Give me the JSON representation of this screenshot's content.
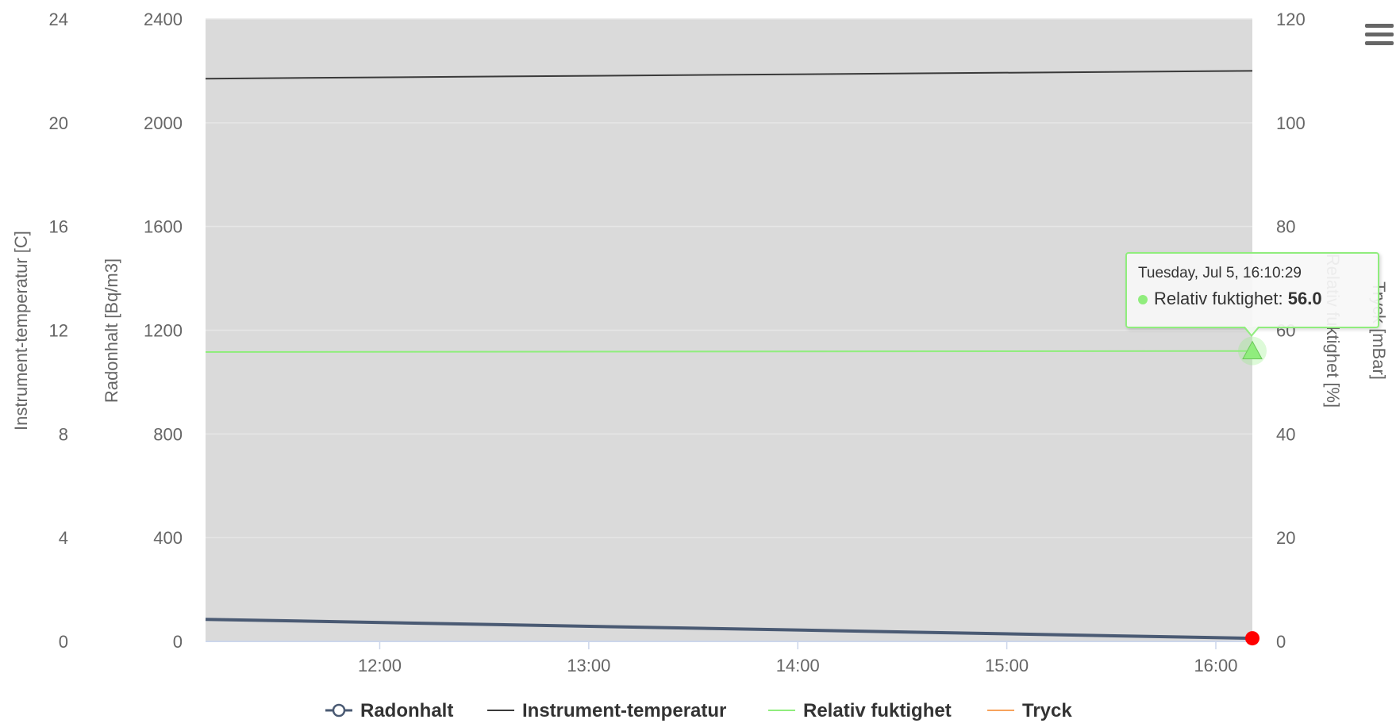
{
  "chart_data": {
    "type": "line",
    "x_ticks": [
      "12:00",
      "13:00",
      "14:00",
      "15:00",
      "16:00"
    ],
    "axes": {
      "temp": {
        "title": "Instrument-temperatur [C]",
        "ylim": [
          0,
          24
        ],
        "ticks": [
          "0",
          "4",
          "8",
          "12",
          "16",
          "20",
          "24"
        ]
      },
      "radon": {
        "title": "Radonhalt [Bq/m3]",
        "ylim": [
          0,
          2400
        ],
        "ticks": [
          "0",
          "400",
          "800",
          "1200",
          "1600",
          "2000",
          "2400"
        ]
      },
      "humidity": {
        "title": "Relativ fuktighet [%]",
        "ylim": [
          0,
          120
        ],
        "ticks": [
          "0",
          "20",
          "40",
          "60",
          "80",
          "100",
          "120"
        ]
      },
      "pressure": {
        "title": "Tryck [mBar]"
      }
    },
    "x_range": [
      "11:10",
      "16:10:29"
    ],
    "series": [
      {
        "name": "Radonhalt",
        "axis": "radon",
        "color": "#4a5a73",
        "x": [
          "11:10",
          "16:10:29"
        ],
        "values": [
          85,
          12
        ]
      },
      {
        "name": "Instrument-temperatur",
        "axis": "temp",
        "color": "#3a3a3a",
        "x": [
          "11:10",
          "16:10:29"
        ],
        "values": [
          21.7,
          22.0
        ]
      },
      {
        "name": "Relativ fuktighet",
        "axis": "humidity",
        "color": "#90ed7d",
        "x": [
          "11:10",
          "16:10:29"
        ],
        "values": [
          55.8,
          56.0
        ]
      },
      {
        "name": "Tryck",
        "axis": "pressure",
        "color": "#f7a35c",
        "x": [],
        "values": []
      }
    ],
    "grid": true,
    "legend_position": "bottom-center",
    "tooltip": {
      "date": "Tuesday, Jul 5, 16:10:29",
      "series": "Relativ fuktighet",
      "value": "56.0"
    }
  },
  "colors": {
    "plot_background": "#dadada",
    "gridline": "#e6e6e6",
    "axis_text": "#666666",
    "radon_marker": "#ff0000"
  },
  "icons": {
    "menu": "hamburger-menu-icon"
  }
}
